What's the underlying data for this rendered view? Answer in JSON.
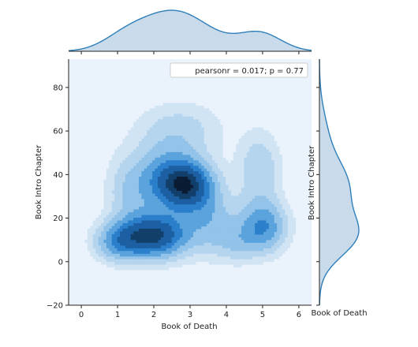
{
  "chart_data": {
    "type": "kde_jointplot",
    "xlabel": "Book of Death",
    "ylabel": "Book Intro Chapter",
    "right_marginal_ylabel": "Book Intro Chapter",
    "right_marginal_xlabel": "Book of Death",
    "annotation": "pearsonr = 0.017; p = 0.77",
    "xlim": [
      -0.35,
      6.35
    ],
    "ylim": [
      -20,
      93
    ],
    "x_ticks": [
      0,
      1,
      2,
      3,
      4,
      5,
      6
    ],
    "y_ticks": [
      -20,
      0,
      20,
      40,
      60,
      80
    ],
    "y_tick_labels": [
      "−20",
      "0",
      "20",
      "40",
      "60",
      "80"
    ],
    "legend_placement": "top-right",
    "colors": {
      "background": "#eaf3fb",
      "contour_levels": [
        "#d1e4f4",
        "#b5d4ee",
        "#93c3e8",
        "#5ba3dc",
        "#2b7fcb",
        "#1c60a3",
        "#133f6b",
        "#0a1c33"
      ],
      "marginal_fill": "#c9dbea",
      "marginal_line": "#2f7fba"
    },
    "density_components": [
      {
        "x": 2.0,
        "y": 12,
        "sx": 0.65,
        "sy": 7,
        "weight": 1.0
      },
      {
        "x": 2.95,
        "y": 35,
        "sx": 0.5,
        "sy": 8,
        "weight": 0.95
      },
      {
        "x": 2.3,
        "y": 38,
        "sx": 0.5,
        "sy": 10,
        "weight": 0.5
      },
      {
        "x": 1.0,
        "y": 9,
        "sx": 0.45,
        "sy": 6,
        "weight": 0.45
      },
      {
        "x": 1.35,
        "y": 33,
        "sx": 0.45,
        "sy": 12,
        "weight": 0.3
      },
      {
        "x": 5.0,
        "y": 16,
        "sx": 0.45,
        "sy": 8,
        "weight": 0.6
      },
      {
        "x": 4.9,
        "y": 42,
        "sx": 0.4,
        "sy": 12,
        "weight": 0.3
      },
      {
        "x": 3.6,
        "y": 18,
        "sx": 0.5,
        "sy": 10,
        "weight": 0.35
      },
      {
        "x": 2.7,
        "y": 60,
        "sx": 0.8,
        "sy": 9,
        "weight": 0.25
      },
      {
        "x": 4.3,
        "y": 8,
        "sx": 0.4,
        "sy": 6,
        "weight": 0.2
      }
    ],
    "contour_thresholds": [
      0.07,
      0.15,
      0.25,
      0.37,
      0.5,
      0.63,
      0.8,
      0.93
    ]
  }
}
